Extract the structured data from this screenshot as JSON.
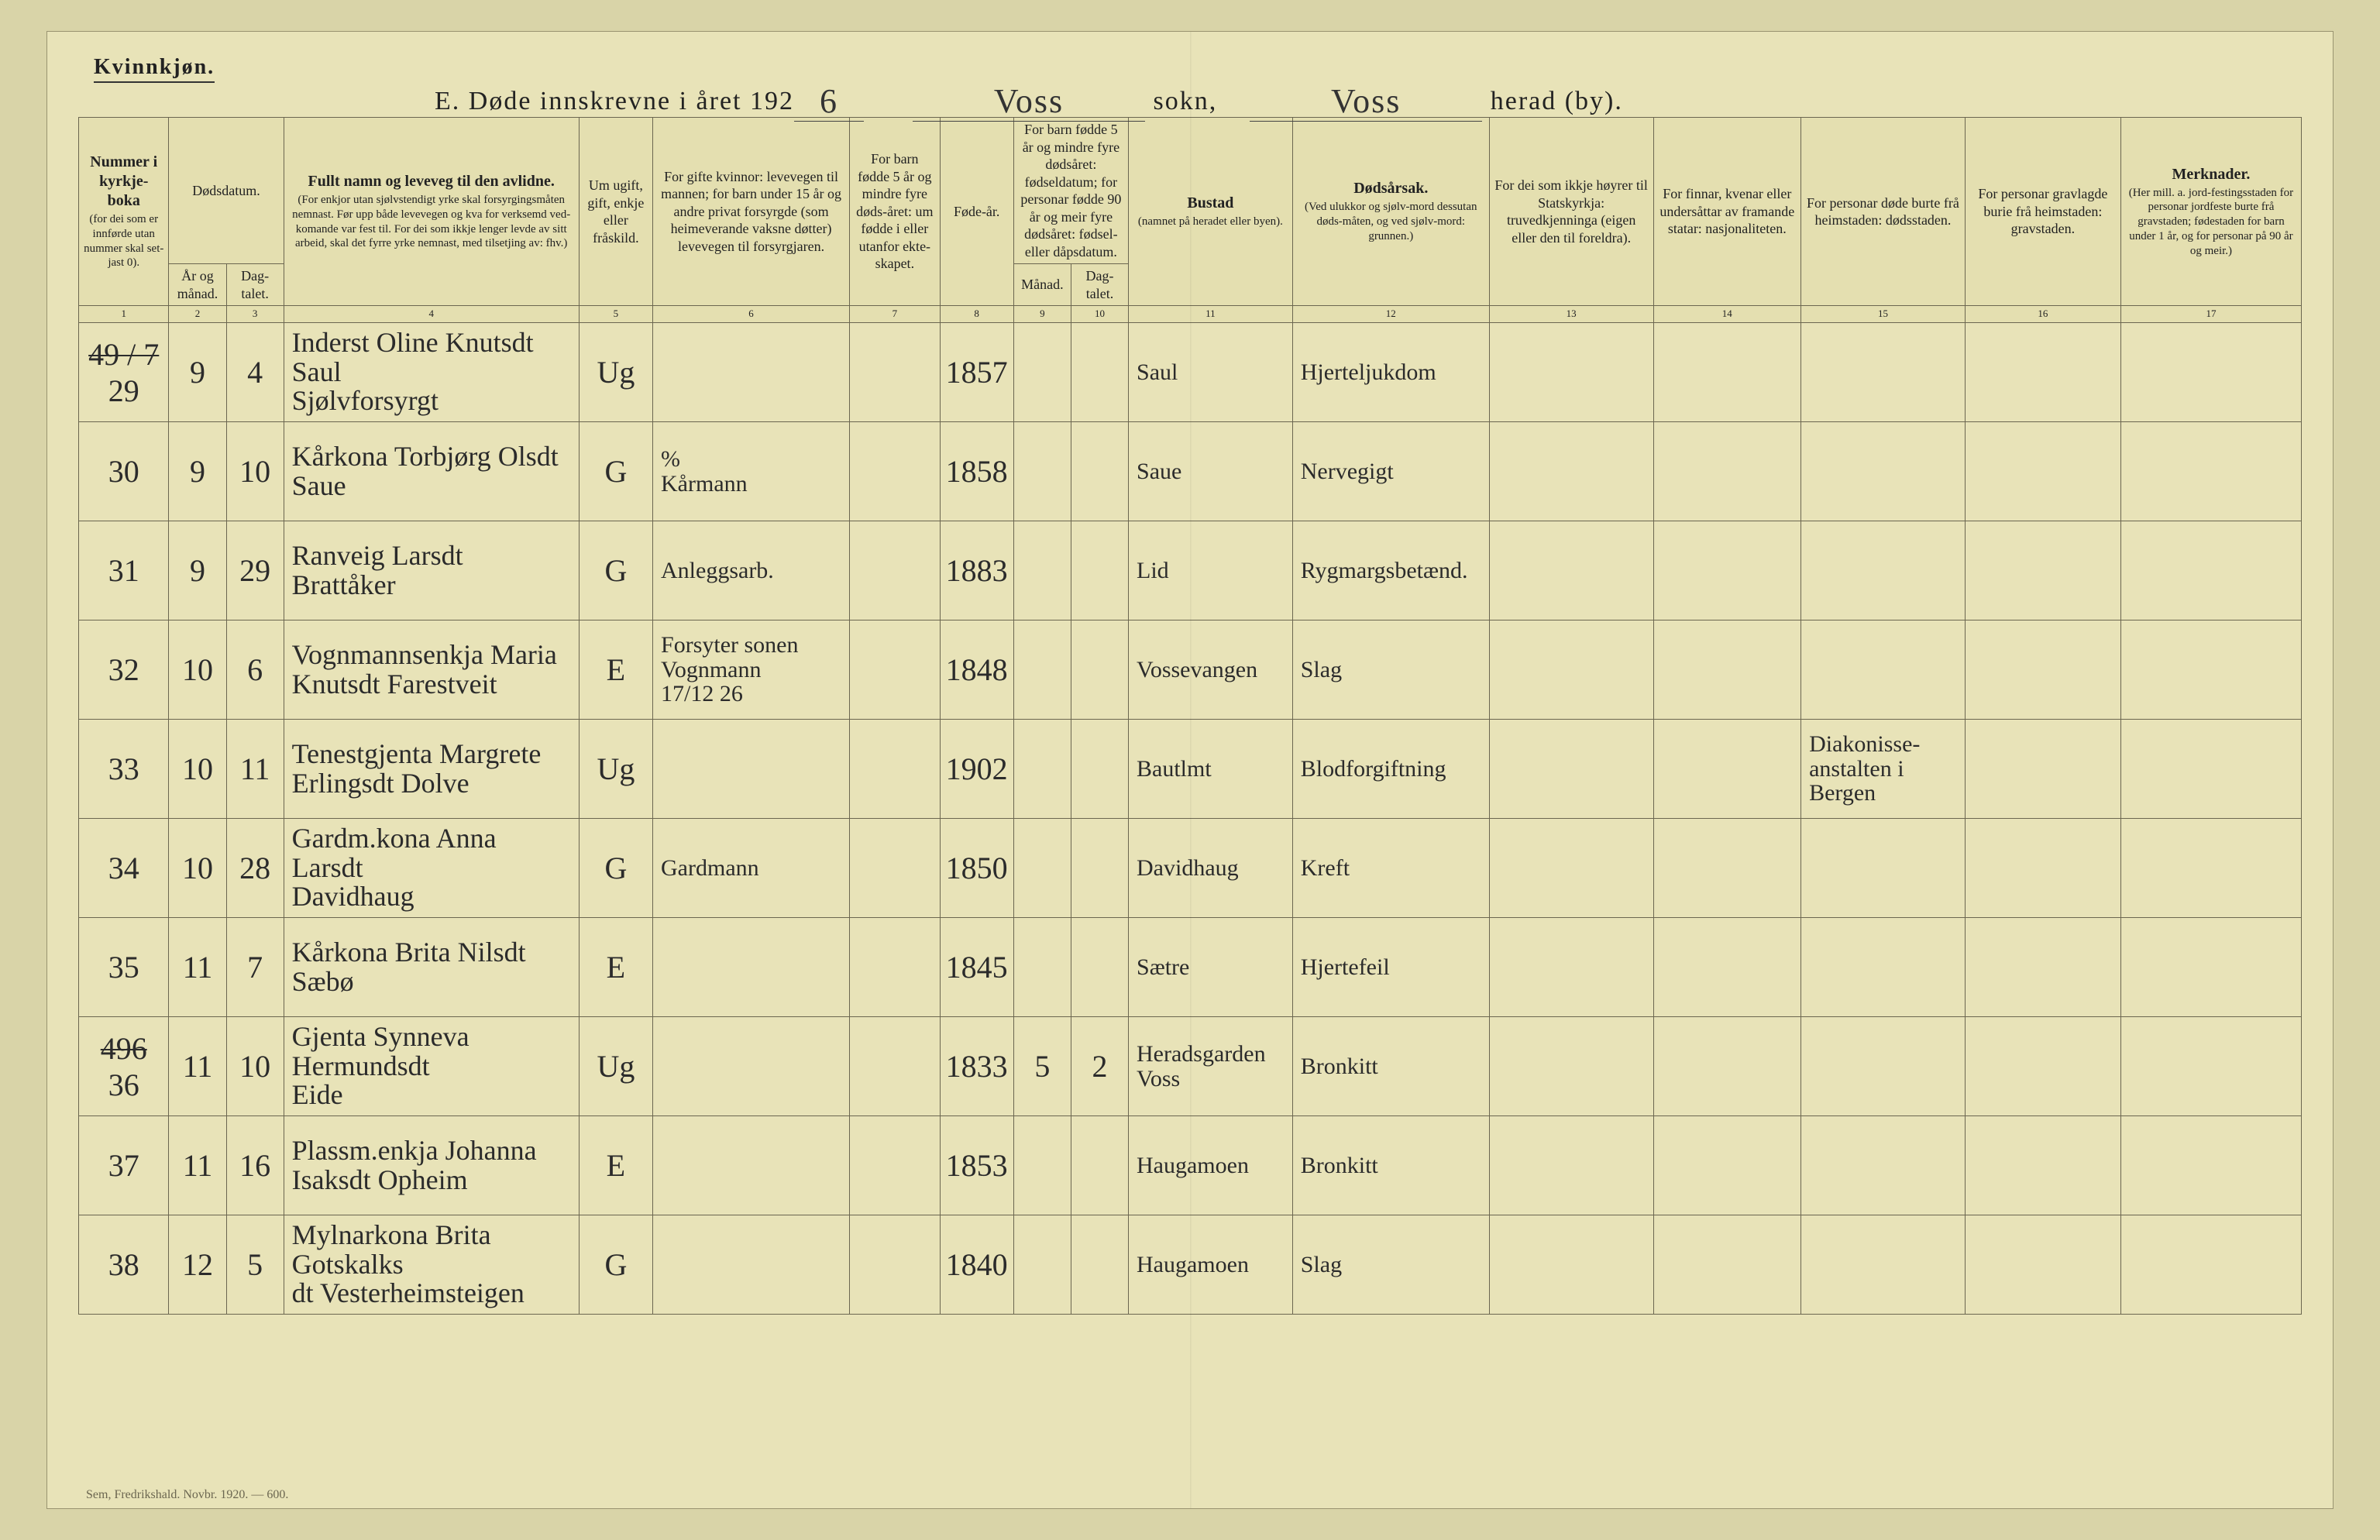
{
  "page": {
    "gender_label": "Kvinnkjøn.",
    "title_prefix": "E.   Døde innskrevne i året 192",
    "year_suffix": "6",
    "sokn_value": "Voss",
    "sokn_label": "sokn,",
    "herad_value": "Voss",
    "herad_label": "herad (by).",
    "footer": "Sem, Fredrikshald. Novbr. 1920. — 600."
  },
  "columns": {
    "c1": {
      "bold": "Nummer i kyrkje-boka",
      "small": "(for dei som er innførde utan nummer skal set-jast 0)."
    },
    "c2_group": "Dødsdatum.",
    "c2a": "År og månad.",
    "c2b": "Dag-talet.",
    "c3": {
      "bold": "Fullt namn og leveveg til den avlidne.",
      "small": "(For enkjor utan sjølvstendigt yrke skal forsyrgingsmåten nemnast. Før upp både levevegen og kva for verksemd ved-komande var fest til. For dei som ikkje lenger levde av sitt arbeid, skal det fyrre yrke nemnast, med tilsetjing av: fhv.)"
    },
    "c5": "Um ugift, gift, enkje eller fråskild.",
    "c6": "For gifte kvinnor: levevegen til mannen; for barn under 15 år og andre privat forsyrgde (som heimeverande vaksne døtter) levevegen til forsyrgjaren.",
    "c7": "For barn fødde 5 år og mindre fyre døds-året: um fødde i eller utanfor ekte-skapet.",
    "c8": "Føde-år.",
    "c9_group": "For barn fødde 5 år og mindre fyre dødsåret: fødseldatum; for personar fødde 90 år og meir fyre dødsåret: fødsel- eller dåpsdatum.",
    "c9a": "Månad.",
    "c9b": "Dag-talet.",
    "c11": {
      "bold": "Bustad",
      "small": "(namnet på heradet eller byen)."
    },
    "c12": {
      "bold": "Dødsårsak.",
      "small": "(Ved ulukkor og sjølv-mord dessutan døds-måten, og ved sjølv-mord: grunnen.)"
    },
    "c13": "For dei som ikkje høyrer til Statskyrkja: truvedkjenninga (eigen eller den til foreldra).",
    "c14": "For finnar, kvenar eller undersåttar av framande statar: nasjonaliteten.",
    "c15": "For personar døde burte frå heimstaden: dødsstaden.",
    "c16": "For personar gravlagde burie frå heimstaden: gravstaden.",
    "c17": {
      "bold": "Merknader.",
      "small": "(Her mill. a. jord-festingsstaden for personar jordfeste burte frå gravstaden; fødestaden for barn under 1 år, og for personar på 90 år og meir.)"
    }
  },
  "colnums": [
    "1",
    "2",
    "3",
    "4",
    "5",
    "6",
    "7",
    "8",
    "9",
    "10",
    "11",
    "12",
    "13",
    "14",
    "15",
    "16",
    "17"
  ],
  "rows": [
    {
      "num": "29",
      "struck_prefix": "49 / 7",
      "mon": "9",
      "day": "4",
      "name": "Inderst Oline Knutsdt\nSaul\nSjølvforsyrgt",
      "stat": "Ug",
      "c6": "",
      "c8": "1857",
      "res": "Saul",
      "cause": "Hjerteljukdom",
      "c15": ""
    },
    {
      "num": "30",
      "mon": "9",
      "day": "10",
      "name": "Kårkona Torbjørg Olsdt\nSaue",
      "stat": "G",
      "c6": "%\nKårmann",
      "c8": "1858",
      "res": "Saue",
      "cause": "Nervegigt",
      "c15": ""
    },
    {
      "num": "31",
      "mon": "9",
      "day": "29",
      "name": "Ranveig Larsdt\nBrattåker",
      "stat": "G",
      "c6": "Anleggsarb.",
      "c8": "1883",
      "res": "Lid",
      "cause": "Rygmargsbetænd.",
      "c15": ""
    },
    {
      "num": "32",
      "mon": "10",
      "day": "6",
      "name": "Vognmannsenkja Maria\nKnutsdt Farestveit",
      "stat": "E",
      "c6": "Forsyter sonen\nVognmann\n17/12 26",
      "c8": "1848",
      "res": "Vossevangen",
      "cause": "Slag",
      "c15": ""
    },
    {
      "num": "33",
      "mon": "10",
      "day": "11",
      "name": "Tenestgjenta Margrete\nErlingsdt Dolve",
      "stat": "Ug",
      "c6": "",
      "c8": "1902",
      "res": "Bautlmt",
      "cause": "Blodforgiftning",
      "c15": "Diakonisse-\nanstalten i\nBergen"
    },
    {
      "num": "34",
      "mon": "10",
      "day": "28",
      "name": "Gardm.kona Anna Larsdt\nDavidhaug",
      "stat": "G",
      "c6": "Gardmann",
      "c8": "1850",
      "res": "Davidhaug",
      "cause": "Kreft",
      "c15": ""
    },
    {
      "num": "35",
      "mon": "11",
      "day": "7",
      "name": "Kårkona Brita Nilsdt\nSæbø",
      "stat": "E",
      "c6": "",
      "c8": "1845",
      "res": "Sætre",
      "cause": "Hjertefeil",
      "c15": ""
    },
    {
      "num": "36",
      "struck_prefix": "496",
      "mon": "11",
      "day": "10",
      "name": "Gjenta Synneva Hermundsdt\nEide",
      "stat": "Ug",
      "c6": "",
      "c8": "1833",
      "c9a": "5",
      "c9b": "2",
      "res": "Heradsgarden\nVoss",
      "cause": "Bronkitt",
      "c15": ""
    },
    {
      "num": "37",
      "mon": "11",
      "day": "16",
      "name": "Plassm.enkja Johanna\nIsaksdt Opheim",
      "stat": "E",
      "c6": "",
      "c8": "1853",
      "res": "Haugamoen",
      "cause": "Bronkitt",
      "c15": ""
    },
    {
      "num": "38",
      "mon": "12",
      "day": "5",
      "name": "Mylnarkona Brita Gotskalks\ndt Vesterheimsteigen",
      "stat": "G",
      "c6": "",
      "c8": "1840",
      "res": "Haugamoen",
      "cause": "Slag",
      "c15": ""
    }
  ],
  "widths": {
    "c1": 110,
    "c2a": 70,
    "c2b": 70,
    "c3": 360,
    "c5": 90,
    "c6": 240,
    "c7": 110,
    "c8": 90,
    "c9a": 70,
    "c9b": 70,
    "c11": 200,
    "c12": 240,
    "c13": 200,
    "c14": 180,
    "c15": 200,
    "c16": 190,
    "c17": 220
  },
  "colors": {
    "page_bg": "#e8e3b8",
    "body_bg": "#d9d4a8",
    "border": "#6b6650",
    "ink": "#2b2b2b"
  }
}
